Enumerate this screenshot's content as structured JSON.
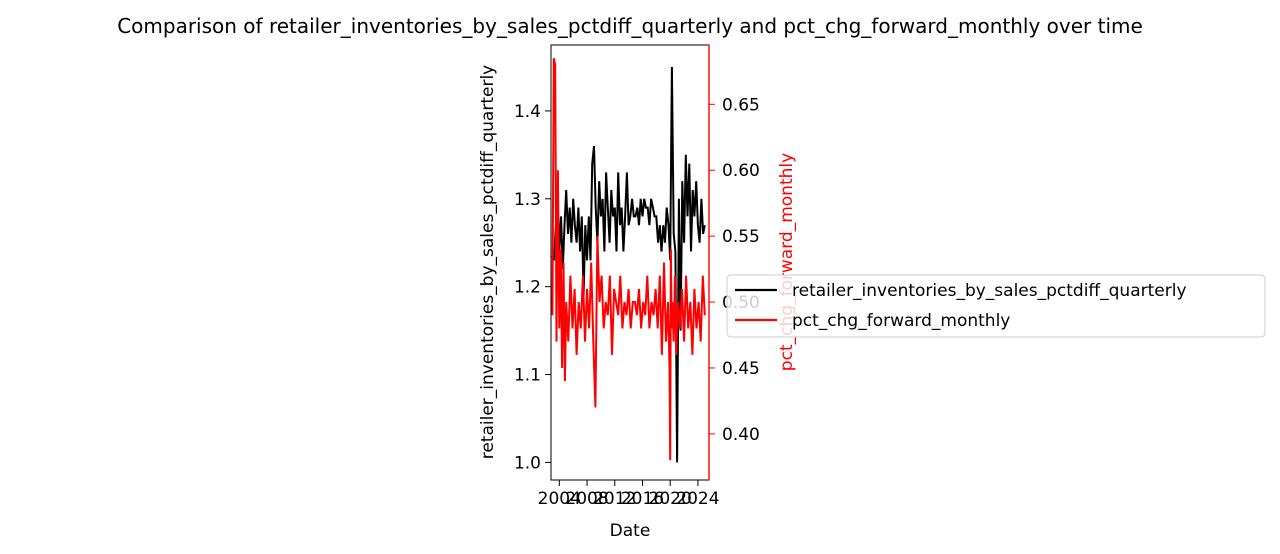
{
  "chart_data": {
    "type": "line",
    "title": "Comparison of retailer_inventories_by_sales_pctdiff_quarterly and pct_chg_forward_monthly over time",
    "xlabel": "Date",
    "ylabel_left": "retailer_inventories_by_sales_pctdiff_quarterly",
    "ylabel_right": "pct_chg_forward_monthly",
    "xlim": [
      2002.8,
      2025.6
    ],
    "ylim_left": [
      0.98,
      1.475
    ],
    "ylim_right": [
      0.365,
      0.695
    ],
    "x_ticks": [
      2004,
      2008,
      2012,
      2016,
      2020,
      2024
    ],
    "x_tick_labels": [
      "2004",
      "2008",
      "2012",
      "2016",
      "2020",
      "2024"
    ],
    "y_left_ticks": [
      1.0,
      1.1,
      1.2,
      1.3,
      1.4
    ],
    "y_left_tick_labels": [
      "1.0",
      "1.1",
      "1.2",
      "1.3",
      "1.4"
    ],
    "y_right_ticks": [
      0.4,
      0.45,
      0.5,
      0.55,
      0.6,
      0.65
    ],
    "y_right_tick_labels": [
      "0.40",
      "0.45",
      "0.50",
      "0.55",
      "0.60",
      "0.65"
    ],
    "grid": false,
    "legend": {
      "placement": "right-outside",
      "entries": [
        {
          "label": "retailer_inventories_by_sales_pctdiff_quarterly",
          "color": "#000000"
        },
        {
          "label": "pct_chg_forward_monthly",
          "color": "#ff0000"
        }
      ]
    },
    "series": [
      {
        "name": "retailer_inventories_by_sales_pctdiff_quarterly",
        "axis": "left",
        "color": "#000000",
        "x": [
          2003.0,
          2003.25,
          2003.5,
          2003.75,
          2004.0,
          2004.25,
          2004.5,
          2004.75,
          2005.0,
          2005.25,
          2005.5,
          2005.75,
          2006.0,
          2006.25,
          2006.5,
          2006.75,
          2007.0,
          2007.25,
          2007.5,
          2007.75,
          2008.0,
          2008.25,
          2008.5,
          2008.75,
          2009.0,
          2009.25,
          2009.5,
          2009.75,
          2010.0,
          2010.25,
          2010.5,
          2010.75,
          2011.0,
          2011.25,
          2011.5,
          2011.75,
          2012.0,
          2012.25,
          2012.5,
          2012.75,
          2013.0,
          2013.25,
          2013.5,
          2013.75,
          2014.0,
          2014.25,
          2014.5,
          2014.75,
          2015.0,
          2015.25,
          2015.5,
          2015.75,
          2016.0,
          2016.25,
          2016.5,
          2016.75,
          2017.0,
          2017.25,
          2017.5,
          2017.75,
          2018.0,
          2018.25,
          2018.5,
          2018.75,
          2019.0,
          2019.25,
          2019.5,
          2019.75,
          2020.0,
          2020.25,
          2020.5,
          2020.75,
          2021.0,
          2021.25,
          2021.5,
          2021.75,
          2022.0,
          2022.25,
          2022.5,
          2022.75,
          2023.0,
          2023.25,
          2023.5,
          2023.75,
          2024.0,
          2024.25,
          2024.5,
          2024.75,
          2025.0
        ],
        "values": [
          1.235,
          1.23,
          1.27,
          1.3,
          1.24,
          1.28,
          1.22,
          1.27,
          1.31,
          1.26,
          1.29,
          1.25,
          1.3,
          1.27,
          1.25,
          1.29,
          1.24,
          1.28,
          1.19,
          1.27,
          1.23,
          1.28,
          1.23,
          1.34,
          1.36,
          1.29,
          1.25,
          1.32,
          1.28,
          1.3,
          1.24,
          1.33,
          1.29,
          1.25,
          1.31,
          1.28,
          1.29,
          1.24,
          1.33,
          1.27,
          1.29,
          1.24,
          1.28,
          1.33,
          1.27,
          1.28,
          1.3,
          1.28,
          1.28,
          1.29,
          1.27,
          1.3,
          1.28,
          1.3,
          1.29,
          1.29,
          1.27,
          1.3,
          1.29,
          1.28,
          1.28,
          1.25,
          1.27,
          1.24,
          1.27,
          1.25,
          1.29,
          1.27,
          1.23,
          1.45,
          1.26,
          1.24,
          1.0,
          1.3,
          1.15,
          1.32,
          1.25,
          1.35,
          1.28,
          1.34,
          1.24,
          1.31,
          1.28,
          1.32,
          1.27,
          1.25,
          1.3,
          1.26,
          1.27
        ]
      },
      {
        "name": "pct_chg_forward_monthly",
        "axis": "right",
        "color": "#ff0000",
        "x": [
          2003.0,
          2003.2,
          2003.4,
          2003.6,
          2003.8,
          2004.0,
          2004.2,
          2004.4,
          2004.6,
          2004.8,
          2005.0,
          2005.3,
          2005.6,
          2005.9,
          2006.2,
          2006.5,
          2006.8,
          2007.1,
          2007.4,
          2007.7,
          2008.0,
          2008.3,
          2008.6,
          2008.9,
          2009.2,
          2009.5,
          2009.8,
          2010.1,
          2010.4,
          2010.7,
          2011.0,
          2011.3,
          2011.6,
          2011.9,
          2012.2,
          2012.5,
          2012.8,
          2013.1,
          2013.4,
          2013.7,
          2014.0,
          2014.3,
          2014.6,
          2014.9,
          2015.2,
          2015.5,
          2015.8,
          2016.1,
          2016.4,
          2016.7,
          2017.0,
          2017.3,
          2017.6,
          2017.9,
          2018.2,
          2018.5,
          2018.8,
          2019.1,
          2019.4,
          2019.7,
          2019.9,
          2020.0,
          2020.1,
          2020.2,
          2020.3,
          2020.5,
          2020.7,
          2020.9,
          2021.1,
          2021.4,
          2021.7,
          2022.0,
          2022.3,
          2022.6,
          2022.9,
          2023.2,
          2023.5,
          2023.8,
          2024.1,
          2024.4,
          2024.7,
          2025.0
        ],
        "values": [
          0.49,
          0.685,
          0.68,
          0.47,
          0.6,
          0.48,
          0.54,
          0.45,
          0.53,
          0.44,
          0.5,
          0.47,
          0.52,
          0.48,
          0.51,
          0.46,
          0.5,
          0.48,
          0.52,
          0.47,
          0.51,
          0.48,
          0.53,
          0.47,
          0.42,
          0.55,
          0.5,
          0.52,
          0.48,
          0.5,
          0.49,
          0.52,
          0.46,
          0.51,
          0.5,
          0.49,
          0.52,
          0.48,
          0.5,
          0.49,
          0.51,
          0.48,
          0.5,
          0.5,
          0.49,
          0.51,
          0.48,
          0.5,
          0.49,
          0.52,
          0.48,
          0.5,
          0.49,
          0.51,
          0.48,
          0.52,
          0.46,
          0.53,
          0.47,
          0.5,
          0.45,
          0.38,
          0.54,
          0.48,
          0.5,
          0.47,
          0.52,
          0.46,
          0.5,
          0.48,
          0.51,
          0.47,
          0.52,
          0.48,
          0.5,
          0.46,
          0.51,
          0.48,
          0.5,
          0.47,
          0.52,
          0.49
        ]
      }
    ]
  }
}
